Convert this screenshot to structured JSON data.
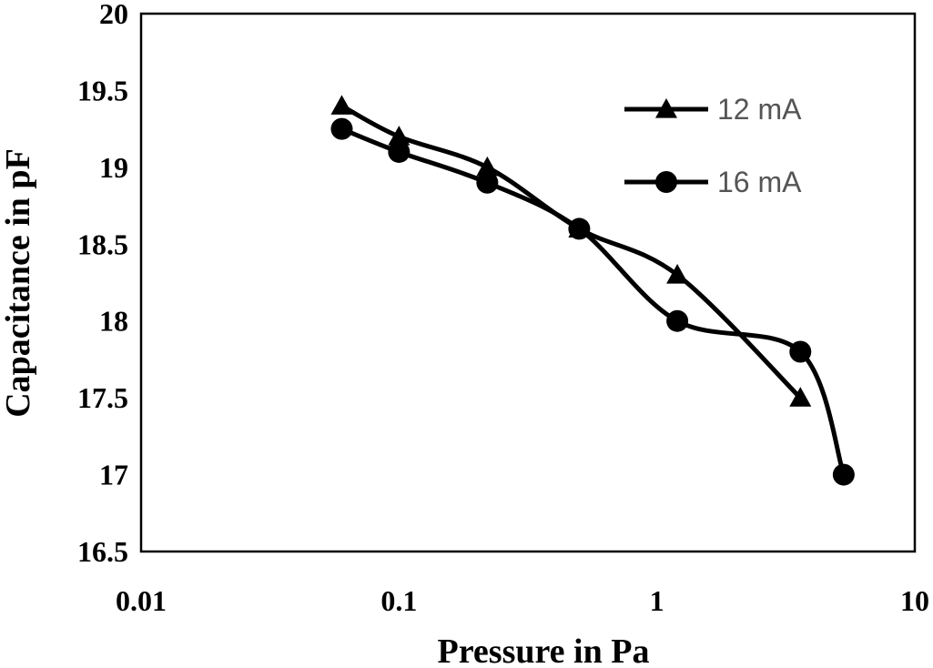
{
  "chart_data": {
    "type": "line",
    "title": "",
    "xlabel": "Pressure in Pa",
    "ylabel": "Capacitance in pF",
    "xscale": "log",
    "xlim": [
      0.01,
      10
    ],
    "ylim": [
      16.5,
      20
    ],
    "xticks": [
      "0.01",
      "0.1",
      "1",
      "10"
    ],
    "yticks": [
      "16.5",
      "17",
      "17.5",
      "18",
      "18.5",
      "19",
      "19.5",
      "20"
    ],
    "grid": false,
    "legend": "top-right",
    "smooth": true,
    "series": [
      {
        "name": "12 mA",
        "marker": "triangle",
        "color": "#000000",
        "x": [
          0.06,
          0.1,
          0.22,
          0.5,
          1.2,
          3.6
        ],
        "y": [
          19.4,
          19.2,
          19.0,
          18.6,
          18.3,
          17.5
        ]
      },
      {
        "name": "16 mA",
        "marker": "circle",
        "color": "#000000",
        "x": [
          0.06,
          0.1,
          0.22,
          0.5,
          1.2,
          3.6,
          5.3
        ],
        "y": [
          19.25,
          19.1,
          18.9,
          18.6,
          18.0,
          17.8,
          17.0
        ]
      }
    ]
  }
}
